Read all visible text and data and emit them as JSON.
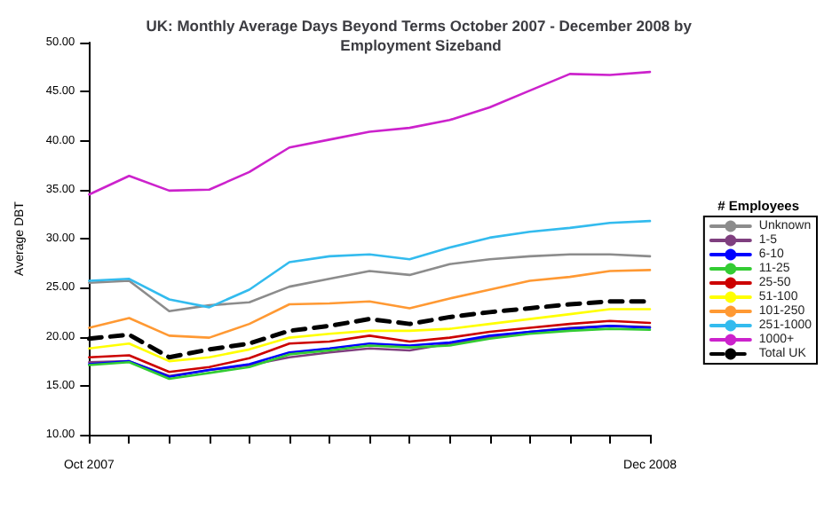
{
  "chart_data": {
    "type": "line",
    "title": "UK: Monthly Average Days Beyond Terms October 2007 - December 2008 by Employment Sizeband",
    "ylabel": "Average DBT",
    "legend_title": "# Employees",
    "categories": [
      "Oct 2007",
      null,
      null,
      null,
      null,
      null,
      null,
      null,
      null,
      null,
      null,
      null,
      null,
      null,
      "Dec 2008"
    ],
    "ylim": [
      10,
      50
    ],
    "yticks": [
      {
        "value": 10,
        "label": "10.00"
      },
      {
        "value": 15,
        "label": "15.00"
      },
      {
        "value": 20,
        "label": "20.00"
      },
      {
        "value": 25,
        "label": "25.00"
      },
      {
        "value": 30,
        "label": "30.00"
      },
      {
        "value": 35,
        "label": "35.00"
      },
      {
        "value": 40,
        "label": "40.00"
      },
      {
        "value": 45,
        "label": "45.00"
      },
      {
        "value": 50,
        "label": "50.00"
      }
    ],
    "grid": false,
    "legend": "right",
    "marker": "none",
    "line_style": "solid",
    "series": [
      {
        "name": "Unknown",
        "color": "#8c8c8c",
        "values": [
          25.5,
          25.7,
          22.6,
          23.2,
          23.5,
          25.1,
          25.9,
          26.7,
          26.3,
          27.4,
          27.9,
          28.2,
          28.4,
          28.4,
          28.2
        ]
      },
      {
        "name": "1-5",
        "color": "#7f3f7f",
        "values": [
          17.4,
          17.5,
          16.0,
          16.6,
          17.1,
          17.9,
          18.4,
          18.8,
          18.6,
          19.3,
          19.9,
          20.5,
          20.9,
          21.1,
          21.0
        ]
      },
      {
        "name": "6-10",
        "color": "#0000ff",
        "values": [
          17.2,
          17.5,
          15.9,
          16.6,
          17.2,
          18.4,
          18.8,
          19.3,
          19.1,
          19.4,
          20.1,
          20.5,
          20.8,
          21.1,
          20.9
        ]
      },
      {
        "name": "11-25",
        "color": "#33cc33",
        "values": [
          17.1,
          17.4,
          15.7,
          16.3,
          16.9,
          18.2,
          18.6,
          19.1,
          18.9,
          19.1,
          19.8,
          20.3,
          20.6,
          20.8,
          20.7
        ]
      },
      {
        "name": "25-50",
        "color": "#cc0000",
        "values": [
          17.9,
          18.1,
          16.4,
          16.9,
          17.8,
          19.3,
          19.5,
          20.1,
          19.5,
          19.9,
          20.5,
          20.9,
          21.3,
          21.6,
          21.4
        ]
      },
      {
        "name": "51-100",
        "color": "#ffff00",
        "values": [
          18.8,
          19.3,
          17.5,
          17.9,
          18.7,
          19.9,
          20.3,
          20.6,
          20.6,
          20.8,
          21.3,
          21.8,
          22.3,
          22.8,
          22.8
        ]
      },
      {
        "name": "101-250",
        "color": "#ff9933",
        "values": [
          20.9,
          21.9,
          20.1,
          19.9,
          21.3,
          23.3,
          23.4,
          23.6,
          22.9,
          23.9,
          24.8,
          25.7,
          26.1,
          26.7,
          26.8
        ]
      },
      {
        "name": "251-1000",
        "color": "#33bbee",
        "values": [
          25.7,
          25.9,
          23.8,
          23.0,
          24.8,
          27.6,
          28.2,
          28.4,
          27.9,
          29.1,
          30.1,
          30.7,
          31.1,
          31.6,
          31.8
        ]
      },
      {
        "name": "1000+",
        "color": "#cc22cc",
        "values": [
          34.5,
          36.4,
          34.9,
          35.0,
          36.8,
          39.3,
          40.1,
          40.9,
          41.3,
          42.1,
          43.4,
          45.1,
          46.8,
          46.7,
          47.0
        ]
      },
      {
        "name": "Total UK",
        "color": "#000000",
        "line_style": "dashed",
        "values": [
          19.8,
          20.2,
          17.9,
          18.7,
          19.3,
          20.6,
          21.1,
          21.8,
          21.3,
          22.0,
          22.5,
          22.9,
          23.3,
          23.6,
          23.6
        ]
      }
    ]
  }
}
